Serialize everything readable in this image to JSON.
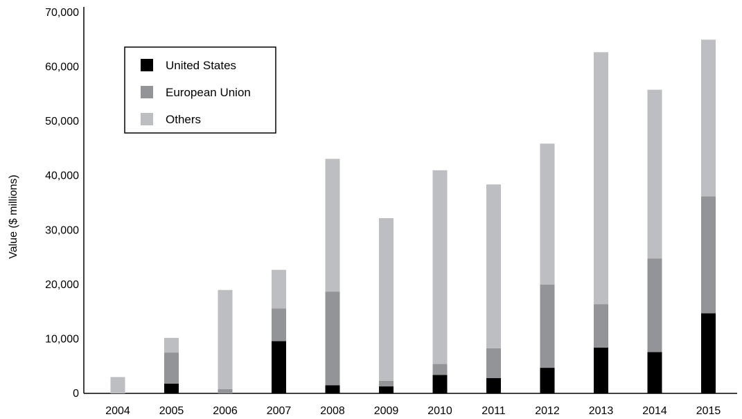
{
  "chart_data": {
    "type": "bar",
    "stacked": true,
    "title": "",
    "xlabel": "",
    "ylabel": "Value ($ millions)",
    "ylim": [
      0,
      70000
    ],
    "yticks": [
      0,
      10000,
      20000,
      30000,
      40000,
      50000,
      60000,
      70000
    ],
    "ytick_labels": [
      "0",
      "10,000",
      "20,000",
      "30,000",
      "40,000",
      "50,000",
      "60,000",
      "70,000"
    ],
    "categories": [
      "2004",
      "2005",
      "2006",
      "2007",
      "2008",
      "2009",
      "2010",
      "2011",
      "2012",
      "2013",
      "2014",
      "2015"
    ],
    "series": [
      {
        "name": "United States",
        "color": "#000000",
        "values": [
          0,
          1800,
          0,
          9600,
          1500,
          1300,
          3400,
          2800,
          4700,
          8400,
          7600,
          14700
        ]
      },
      {
        "name": "European Union",
        "color": "#939497",
        "values": [
          0,
          5700,
          800,
          6000,
          17200,
          1000,
          2000,
          5500,
          15300,
          8000,
          17200,
          21500
        ]
      },
      {
        "name": "Others",
        "color": "#bdbec1",
        "values": [
          3000,
          2700,
          18200,
          7100,
          24400,
          29900,
          35600,
          30100,
          25900,
          46300,
          31000,
          28800
        ]
      }
    ],
    "legend": {
      "position": "top-left",
      "entries": [
        "United States",
        "European Union",
        "Others"
      ]
    },
    "grid": false
  }
}
